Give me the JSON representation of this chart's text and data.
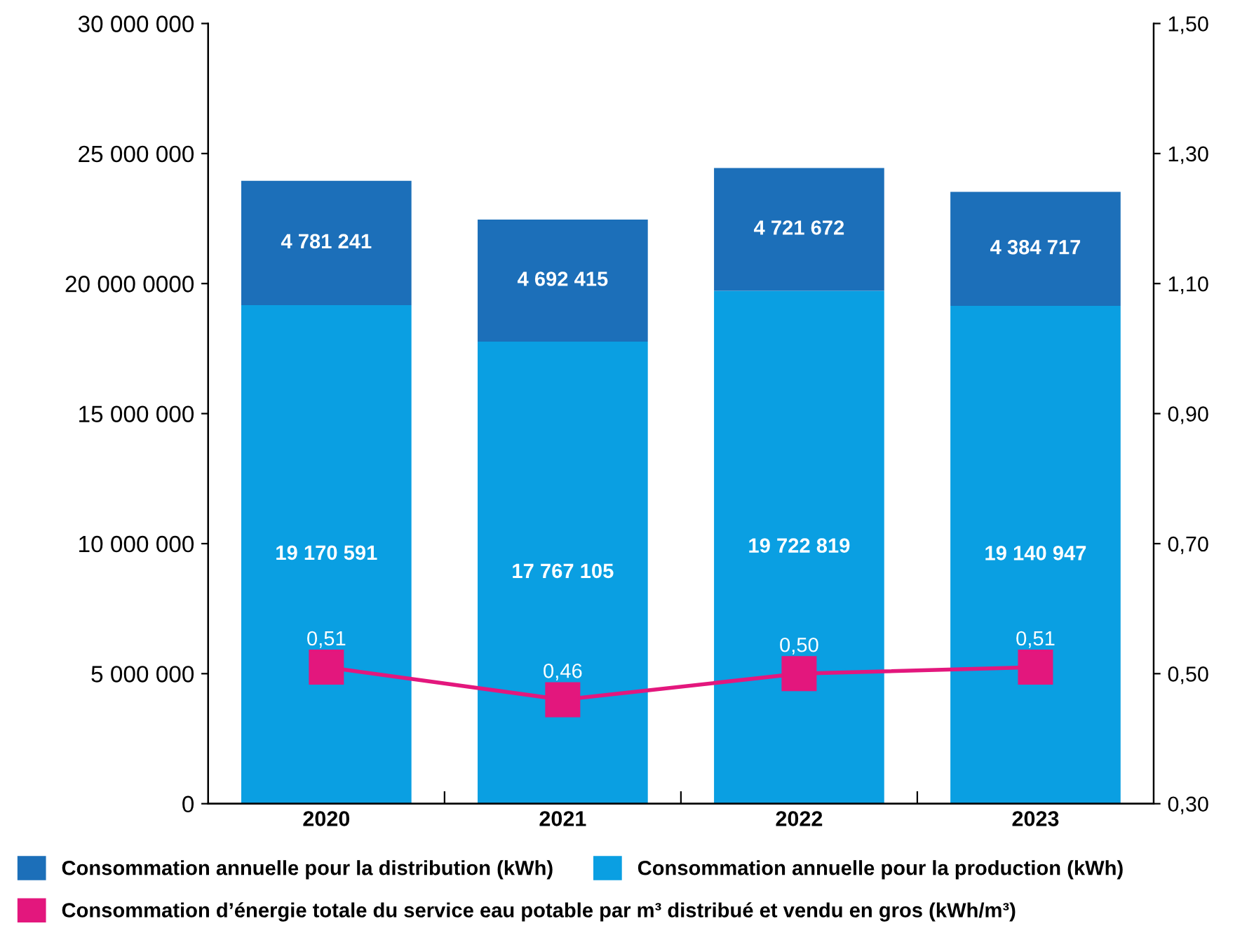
{
  "chart_data": {
    "type": "bar",
    "stacked": true,
    "categories": [
      "2020",
      "2021",
      "2022",
      "2023"
    ],
    "series": [
      {
        "name": "Consommation annuelle pour la production (kWh)",
        "color": "#0a9fe2",
        "values": [
          19170591,
          17767105,
          19722819,
          19140947
        ],
        "value_labels": [
          "19 170 591",
          "17 767 105",
          "19 722 819",
          "19 140 947"
        ]
      },
      {
        "name": "Consommation annuelle pour la distribution (kWh)",
        "color": "#1c6fb9",
        "values": [
          4781241,
          4692415,
          4721672,
          4384717
        ],
        "value_labels": [
          "4 781 241",
          "4 692 415",
          "4 721 672",
          "4 384 717"
        ]
      },
      {
        "name": "Consommation d’énergie totale du service eau potable par m³ distribué et vendu en gros (kWh/m³)",
        "type": "line",
        "axis": "y2",
        "color": "#e3177d",
        "marker": "square",
        "values": [
          0.51,
          0.46,
          0.5,
          0.51
        ],
        "value_labels": [
          "0,51",
          "0,46",
          "0,50",
          "0,51"
        ]
      }
    ],
    "ylim": [
      0,
      30000000
    ],
    "yticks": [
      0,
      {
        "value": 5000000,
        "label": "5 000 000"
      },
      {
        "value": 10000000,
        "label": "10 000 000"
      },
      {
        "value": 15000000,
        "label": "15 000 000"
      },
      {
        "value": 20000000,
        "label": "20 000 0000"
      },
      {
        "value": 25000000,
        "label": "25 000 000"
      },
      {
        "value": 30000000,
        "label": "30 000 000"
      }
    ],
    "y2lim": [
      0.3,
      1.5
    ],
    "y2ticks": [
      {
        "value": 0.3,
        "label": "0,30"
      },
      {
        "value": 0.5,
        "label": "0,50"
      },
      {
        "value": 0.7,
        "label": "0,70"
      },
      {
        "value": 0.9,
        "label": "0,90"
      },
      {
        "value": 1.1,
        "label": "1,10"
      },
      {
        "value": 1.3,
        "label": "1,30"
      },
      {
        "value": 1.5,
        "label": "1,50"
      }
    ],
    "legend": "bottom",
    "grid": false
  }
}
